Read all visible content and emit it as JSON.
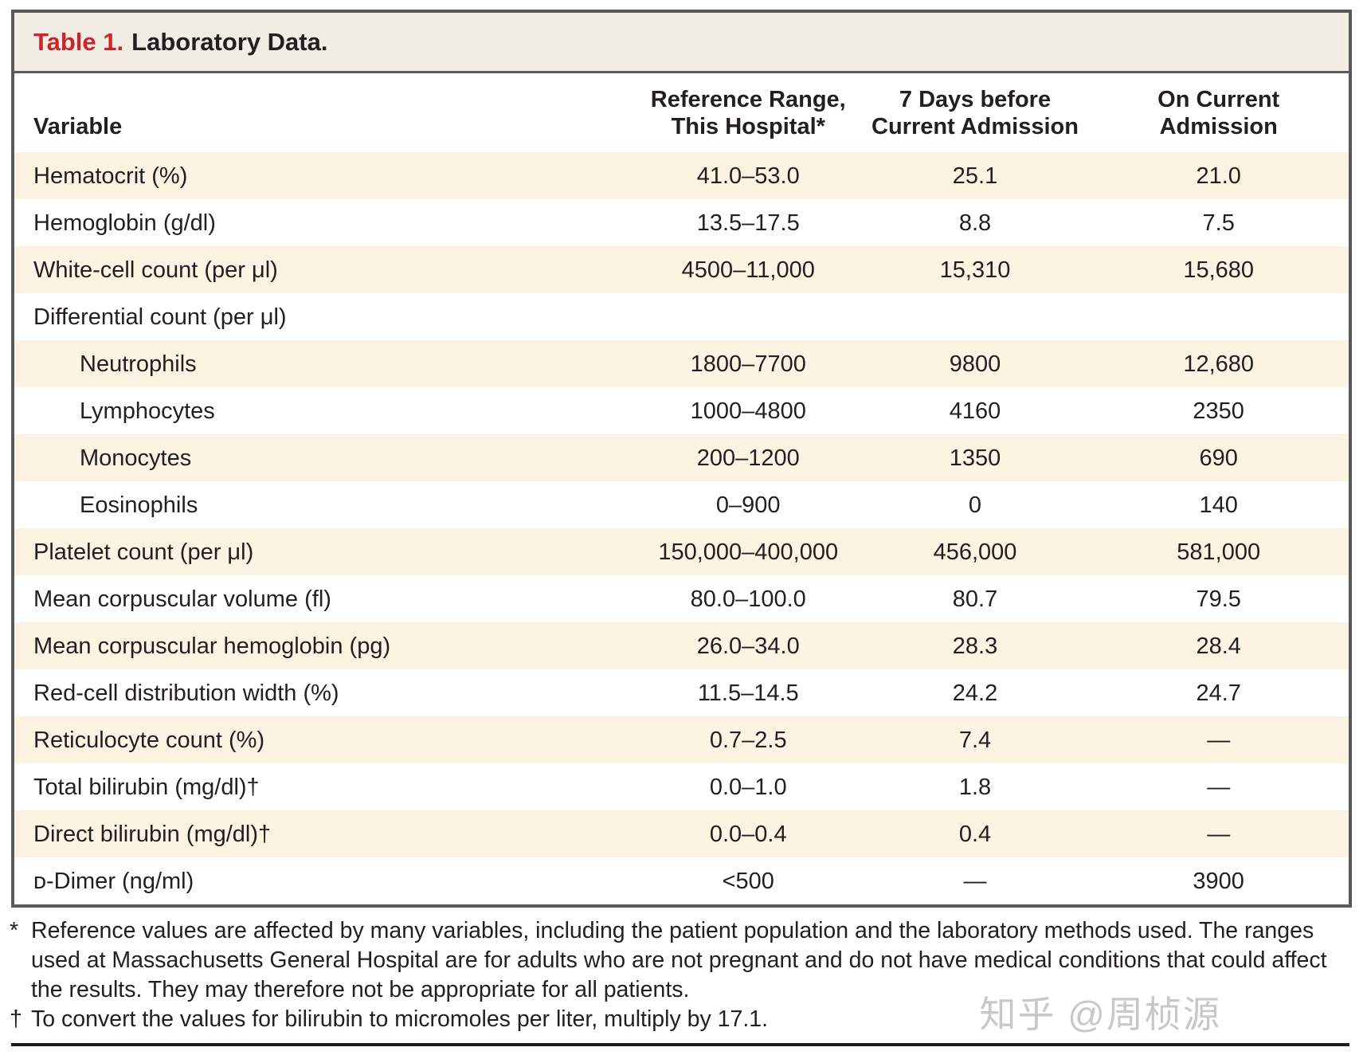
{
  "table": {
    "title_label": "Table 1.",
    "title_text": "Laboratory Data.",
    "columns": [
      "Variable",
      "Reference Range,\nThis Hospital*",
      "7 Days before\nCurrent Admission",
      "On Current\nAdmission"
    ],
    "rows": [
      {
        "variable": "Hematocrit (%)",
        "indent": false,
        "ref": "41.0–53.0",
        "before": "25.1",
        "current": "21.0"
      },
      {
        "variable": "Hemoglobin (g/dl)",
        "indent": false,
        "ref": "13.5–17.5",
        "before": "8.8",
        "current": "7.5"
      },
      {
        "variable": "White-cell count (per μl)",
        "indent": false,
        "ref": "4500–11,000",
        "before": "15,310",
        "current": "15,680"
      },
      {
        "variable": "Differential count (per μl)",
        "indent": false,
        "ref": "",
        "before": "",
        "current": ""
      },
      {
        "variable": "Neutrophils",
        "indent": true,
        "ref": "1800–7700",
        "before": "9800",
        "current": "12,680"
      },
      {
        "variable": "Lymphocytes",
        "indent": true,
        "ref": "1000–4800",
        "before": "4160",
        "current": "2350"
      },
      {
        "variable": "Monocytes",
        "indent": true,
        "ref": "200–1200",
        "before": "1350",
        "current": "690"
      },
      {
        "variable": "Eosinophils",
        "indent": true,
        "ref": "0–900",
        "before": "0",
        "current": "140"
      },
      {
        "variable": "Platelet count (per μl)",
        "indent": false,
        "ref": "150,000–400,000",
        "before": "456,000",
        "current": "581,000"
      },
      {
        "variable": "Mean corpuscular volume (fl)",
        "indent": false,
        "ref": "80.0–100.0",
        "before": "80.7",
        "current": "79.5"
      },
      {
        "variable": "Mean corpuscular hemoglobin (pg)",
        "indent": false,
        "ref": "26.0–34.0",
        "before": "28.3",
        "current": "28.4"
      },
      {
        "variable": "Red-cell distribution width (%)",
        "indent": false,
        "ref": "11.5–14.5",
        "before": "24.2",
        "current": "24.7"
      },
      {
        "variable": "Reticulocyte count (%)",
        "indent": false,
        "ref": "0.7–2.5",
        "before": "7.4",
        "current": "—"
      },
      {
        "variable": "Total bilirubin (mg/dl)†",
        "indent": false,
        "ref": "0.0–1.0",
        "before": "1.8",
        "current": "—"
      },
      {
        "variable": "Direct bilirubin (mg/dl)†",
        "indent": false,
        "ref": "0.0–0.4",
        "before": "0.4",
        "current": "—"
      },
      {
        "variable": "ᴅ-Dimer (ng/ml)",
        "indent": false,
        "ref": "<500",
        "before": "—",
        "current": "3900"
      }
    ]
  },
  "footnotes": [
    {
      "marker": "*",
      "text": "Reference values are affected by many variables, including the patient population and the laboratory methods used. The ranges used at Massachusetts General Hospital are for adults who are not pregnant and do not have medical conditions that could affect the results. They may therefore not be appropriate for all patients."
    },
    {
      "marker": "†",
      "text": "To convert the values for bilirubin to micromoles per liter, multiply by 17.1."
    }
  ],
  "watermark": "知乎 @周桢源",
  "colors": {
    "title_red": "#ce2329",
    "title_bar_bg": "#f1ede5",
    "row_stripe": "#fcf3e3",
    "border_gray": "#595a5c",
    "text": "#231f20",
    "watermark_gray": "#c8c8c8"
  }
}
